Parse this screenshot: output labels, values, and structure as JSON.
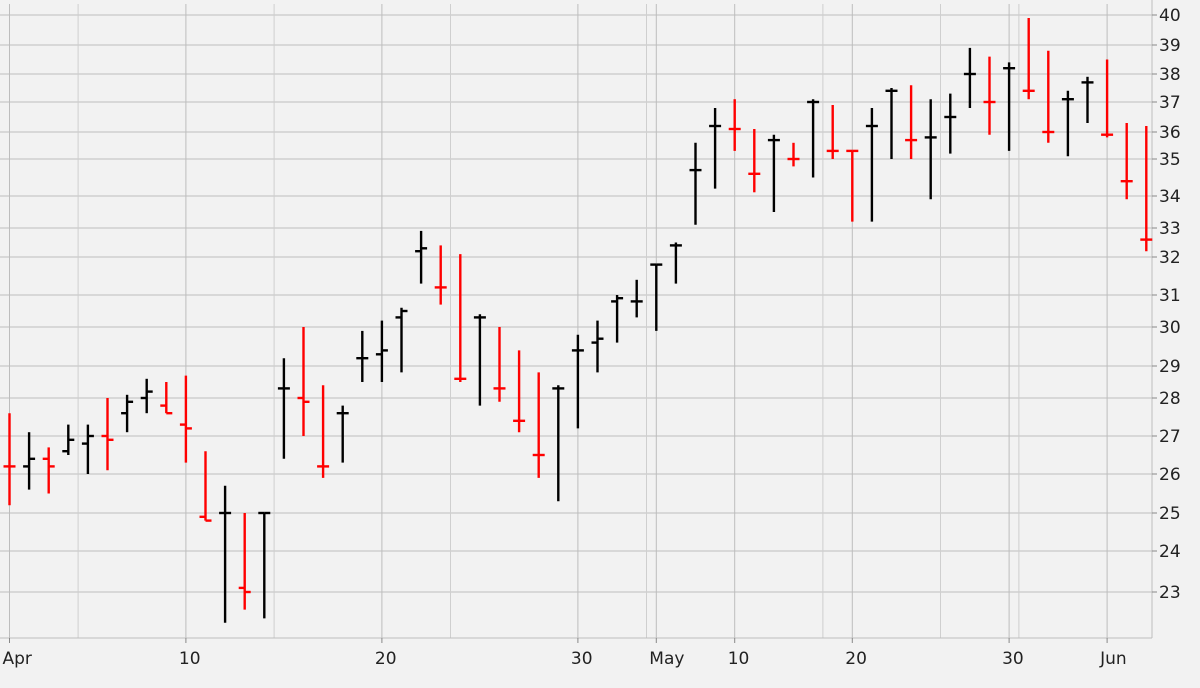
{
  "chart_data": {
    "type": "ohlc",
    "title": "",
    "xlabel": "",
    "ylabel": "",
    "ylim": [
      22,
      40
    ],
    "y_ticks": [
      23,
      24,
      25,
      26,
      27,
      28,
      29,
      30,
      31,
      32,
      33,
      34,
      35,
      36,
      37,
      38,
      39,
      40
    ],
    "grid": true,
    "legend": "none",
    "x_tick_labels": [
      {
        "label": "Apr",
        "index": 0
      },
      {
        "label": "10",
        "index": 9
      },
      {
        "label": "20",
        "index": 19
      },
      {
        "label": "30",
        "index": 29
      },
      {
        "label": "May",
        "index": 33
      },
      {
        "label": "10",
        "index": 37
      },
      {
        "label": "20",
        "index": 43
      },
      {
        "label": "30",
        "index": 51
      },
      {
        "label": "Jun",
        "index": 56
      }
    ],
    "colors": {
      "up": "#000000",
      "down": "#ff0000",
      "grid": "#bdbdbd",
      "background": "#f2f2f2"
    },
    "bars": [
      {
        "high": 27.6,
        "low": 25.2,
        "open": 26.2,
        "close": 26.2,
        "dir": "down"
      },
      {
        "high": 27.1,
        "low": 25.6,
        "open": 26.2,
        "close": 26.4,
        "dir": "up"
      },
      {
        "high": 26.7,
        "low": 25.5,
        "open": 26.4,
        "close": 26.2,
        "dir": "down"
      },
      {
        "high": 27.3,
        "low": 26.5,
        "open": 26.6,
        "close": 26.9,
        "dir": "up"
      },
      {
        "high": 27.3,
        "low": 26.0,
        "open": 26.8,
        "close": 27.0,
        "dir": "up"
      },
      {
        "high": 28.0,
        "low": 26.1,
        "open": 27.0,
        "close": 26.9,
        "dir": "down"
      },
      {
        "high": 28.1,
        "low": 27.1,
        "open": 27.6,
        "close": 27.9,
        "dir": "up"
      },
      {
        "high": 28.6,
        "low": 27.6,
        "open": 28.0,
        "close": 28.2,
        "dir": "up"
      },
      {
        "high": 28.5,
        "low": 27.6,
        "open": 27.8,
        "close": 27.6,
        "dir": "down"
      },
      {
        "high": 28.7,
        "low": 26.3,
        "open": 27.3,
        "close": 27.2,
        "dir": "down"
      },
      {
        "high": 26.6,
        "low": 24.8,
        "open": 24.9,
        "close": 24.8,
        "dir": "down"
      },
      {
        "high": 25.7,
        "low": 22.3,
        "open": 25.0,
        "close": 25.0,
        "dir": "up"
      },
      {
        "high": 25.0,
        "low": 22.6,
        "open": 23.1,
        "close": 23.0,
        "dir": "down"
      },
      {
        "high": 25.0,
        "low": 22.4,
        "open": 25.0,
        "close": 25.0,
        "dir": "up"
      },
      {
        "high": 29.2,
        "low": 26.4,
        "open": 28.3,
        "close": 28.3,
        "dir": "up"
      },
      {
        "high": 30.0,
        "low": 27.0,
        "open": 28.0,
        "close": 27.9,
        "dir": "down"
      },
      {
        "high": 28.4,
        "low": 25.9,
        "open": 26.2,
        "close": 26.2,
        "dir": "down"
      },
      {
        "high": 27.8,
        "low": 26.3,
        "open": 27.6,
        "close": 27.6,
        "dir": "up"
      },
      {
        "high": 29.9,
        "low": 28.5,
        "open": 29.2,
        "close": 29.2,
        "dir": "up"
      },
      {
        "high": 30.2,
        "low": 28.5,
        "open": 29.3,
        "close": 29.4,
        "dir": "up"
      },
      {
        "high": 30.6,
        "low": 28.8,
        "open": 30.3,
        "close": 30.5,
        "dir": "up"
      },
      {
        "high": 32.9,
        "low": 31.3,
        "open": 32.2,
        "close": 32.3,
        "dir": "up"
      },
      {
        "high": 32.4,
        "low": 30.7,
        "open": 31.2,
        "close": 31.2,
        "dir": "down"
      },
      {
        "high": 32.1,
        "low": 28.5,
        "open": 28.6,
        "close": 28.6,
        "dir": "down"
      },
      {
        "high": 30.4,
        "low": 27.8,
        "open": 30.3,
        "close": 30.3,
        "dir": "up"
      },
      {
        "high": 30.0,
        "low": 27.9,
        "open": 28.3,
        "close": 28.3,
        "dir": "down"
      },
      {
        "high": 29.4,
        "low": 27.1,
        "open": 27.4,
        "close": 27.4,
        "dir": "down"
      },
      {
        "high": 28.8,
        "low": 25.9,
        "open": 26.5,
        "close": 26.5,
        "dir": "down"
      },
      {
        "high": 28.4,
        "low": 25.3,
        "open": 28.3,
        "close": 28.3,
        "dir": "up"
      },
      {
        "high": 29.8,
        "low": 27.2,
        "open": 29.4,
        "close": 29.4,
        "dir": "up"
      },
      {
        "high": 30.2,
        "low": 28.8,
        "open": 29.6,
        "close": 29.7,
        "dir": "up"
      },
      {
        "high": 31.0,
        "low": 29.6,
        "open": 30.8,
        "close": 30.9,
        "dir": "up"
      },
      {
        "high": 31.4,
        "low": 30.3,
        "open": 30.8,
        "close": 30.8,
        "dir": "up"
      },
      {
        "high": 31.8,
        "low": 29.9,
        "open": 31.8,
        "close": 31.8,
        "dir": "up"
      },
      {
        "high": 32.5,
        "low": 31.3,
        "open": 32.4,
        "close": 32.4,
        "dir": "up"
      },
      {
        "high": 35.6,
        "low": 33.1,
        "open": 34.7,
        "close": 34.7,
        "dir": "up"
      },
      {
        "high": 36.8,
        "low": 34.2,
        "open": 36.2,
        "close": 36.2,
        "dir": "up"
      },
      {
        "high": 37.1,
        "low": 35.3,
        "open": 36.1,
        "close": 36.1,
        "dir": "down"
      },
      {
        "high": 36.1,
        "low": 34.1,
        "open": 34.6,
        "close": 34.6,
        "dir": "down"
      },
      {
        "high": 35.9,
        "low": 33.5,
        "open": 35.7,
        "close": 35.7,
        "dir": "up"
      },
      {
        "high": 35.6,
        "low": 34.8,
        "open": 35.0,
        "close": 35.0,
        "dir": "down"
      },
      {
        "high": 37.1,
        "low": 34.5,
        "open": 37.0,
        "close": 37.0,
        "dir": "up"
      },
      {
        "high": 36.9,
        "low": 35.0,
        "open": 35.3,
        "close": 35.3,
        "dir": "down"
      },
      {
        "high": 35.3,
        "low": 33.2,
        "open": 35.3,
        "close": 35.3,
        "dir": "down"
      },
      {
        "high": 36.8,
        "low": 33.2,
        "open": 36.2,
        "close": 36.2,
        "dir": "up"
      },
      {
        "high": 37.5,
        "low": 35.0,
        "open": 37.4,
        "close": 37.4,
        "dir": "up"
      },
      {
        "high": 37.6,
        "low": 35.0,
        "open": 35.7,
        "close": 35.7,
        "dir": "down"
      },
      {
        "high": 37.1,
        "low": 33.9,
        "open": 35.8,
        "close": 35.8,
        "dir": "up"
      },
      {
        "high": 37.3,
        "low": 35.2,
        "open": 36.5,
        "close": 36.5,
        "dir": "up"
      },
      {
        "high": 38.9,
        "low": 36.8,
        "open": 38.0,
        "close": 38.0,
        "dir": "up"
      },
      {
        "high": 38.6,
        "low": 35.9,
        "open": 37.0,
        "close": 37.0,
        "dir": "down"
      },
      {
        "high": 38.4,
        "low": 35.3,
        "open": 38.2,
        "close": 38.2,
        "dir": "up"
      },
      {
        "high": 39.9,
        "low": 37.1,
        "open": 37.4,
        "close": 37.4,
        "dir": "down"
      },
      {
        "high": 38.8,
        "low": 35.6,
        "open": 36.0,
        "close": 36.0,
        "dir": "down"
      },
      {
        "high": 37.4,
        "low": 35.1,
        "open": 37.1,
        "close": 37.1,
        "dir": "up"
      },
      {
        "high": 37.9,
        "low": 36.3,
        "open": 37.7,
        "close": 37.7,
        "dir": "up"
      },
      {
        "high": 38.5,
        "low": 35.8,
        "open": 35.9,
        "close": 35.9,
        "dir": "down"
      },
      {
        "high": 36.3,
        "low": 33.9,
        "open": 34.4,
        "close": 34.4,
        "dir": "down"
      },
      {
        "high": 36.2,
        "low": 32.2,
        "open": 32.6,
        "close": 32.6,
        "dir": "down"
      }
    ]
  }
}
